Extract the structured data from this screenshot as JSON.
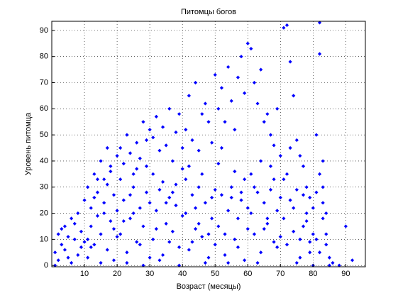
{
  "chart_data": {
    "type": "scatter",
    "title": "Питомцы богов",
    "x_label": "Возраст (месяцы)",
    "y_label": "Уровень питомца",
    "xlim": [
      0,
      96
    ],
    "ylim": [
      -0.5,
      93.5
    ],
    "xticks": [
      10,
      20,
      30,
      40,
      50,
      60,
      70,
      80,
      90
    ],
    "yticks": [
      0,
      10,
      20,
      30,
      40,
      50,
      60,
      70,
      80,
      90
    ],
    "grid": true,
    "series": [
      {
        "color": "#0000ff",
        "x": [
          1,
          2,
          3,
          4,
          5,
          6,
          7,
          8,
          9,
          10,
          1,
          2,
          3,
          4,
          5,
          6,
          7,
          8,
          9,
          10,
          11,
          12,
          13,
          14,
          15,
          16,
          17,
          18,
          19,
          20,
          11,
          12,
          13,
          14,
          15,
          16,
          17,
          18,
          19,
          20,
          11,
          13,
          15,
          17,
          19,
          12,
          14,
          16,
          18,
          20,
          21,
          22,
          23,
          24,
          25,
          26,
          27,
          28,
          29,
          30,
          21,
          22,
          23,
          24,
          25,
          26,
          27,
          28,
          29,
          30,
          21,
          23,
          25,
          27,
          29,
          22,
          24,
          26,
          28,
          30,
          31,
          32,
          33,
          34,
          35,
          36,
          37,
          38,
          39,
          40,
          31,
          32,
          33,
          34,
          35,
          36,
          37,
          38,
          39,
          40,
          31,
          33,
          35,
          37,
          39,
          32,
          34,
          36,
          38,
          40,
          41,
          42,
          43,
          44,
          45,
          46,
          47,
          48,
          49,
          50,
          41,
          42,
          43,
          44,
          45,
          46,
          47,
          48,
          49,
          50,
          41,
          43,
          45,
          47,
          49,
          42,
          44,
          46,
          48,
          50,
          51,
          52,
          53,
          54,
          55,
          56,
          57,
          58,
          59,
          60,
          51,
          52,
          53,
          54,
          55,
          56,
          57,
          58,
          59,
          60,
          51,
          53,
          55,
          57,
          59,
          52,
          54,
          56,
          58,
          60,
          61,
          62,
          63,
          64,
          65,
          66,
          67,
          68,
          69,
          70,
          61,
          62,
          63,
          64,
          65,
          66,
          67,
          68,
          69,
          70,
          61,
          63,
          65,
          67,
          69,
          62,
          64,
          66,
          68,
          70,
          71,
          72,
          73,
          74,
          75,
          76,
          77,
          78,
          79,
          80,
          71,
          72,
          73,
          74,
          75,
          76,
          77,
          78,
          79,
          80,
          71,
          73,
          75,
          77,
          79,
          72,
          74,
          76,
          78,
          80,
          81,
          82,
          82,
          83,
          83,
          84,
          85,
          86,
          90,
          92,
          81,
          82,
          83,
          84,
          81,
          82,
          83,
          84,
          85,
          88
        ],
        "values": [
          5,
          12,
          8,
          15,
          3,
          18,
          10,
          20,
          7,
          25,
          0,
          2,
          14,
          6,
          11,
          1,
          16,
          4,
          13,
          9,
          30,
          22,
          35,
          28,
          40,
          33,
          45,
          38,
          27,
          42,
          3,
          15,
          8,
          19,
          12,
          24,
          6,
          17,
          2,
          21,
          10,
          26,
          1,
          31,
          14,
          7,
          33,
          20,
          36,
          11,
          45,
          39,
          50,
          43,
          35,
          47,
          41,
          55,
          48,
          52,
          12,
          25,
          5,
          18,
          30,
          9,
          22,
          15,
          28,
          3,
          33,
          1,
          20,
          8,
          38,
          17,
          27,
          37,
          0,
          24,
          49,
          57,
          44,
          53,
          46,
          60,
          40,
          51,
          58,
          45,
          10,
          21,
          29,
          4,
          16,
          26,
          13,
          31,
          7,
          19,
          35,
          2,
          24,
          28,
          0,
          14,
          32,
          9,
          23,
          37,
          52,
          65,
          48,
          70,
          44,
          58,
          62,
          55,
          47,
          73,
          20,
          6,
          27,
          14,
          30,
          11,
          24,
          3,
          18,
          29,
          33,
          9,
          16,
          1,
          26,
          38,
          22,
          35,
          12,
          8,
          60,
          68,
          55,
          76,
          63,
          52,
          72,
          80,
          66,
          85,
          15,
          27,
          4,
          21,
          30,
          10,
          18,
          25,
          2,
          22,
          39,
          12,
          26,
          7,
          33,
          45,
          1,
          36,
          28,
          14,
          83,
          70,
          62,
          75,
          55,
          58,
          50,
          46,
          60,
          42,
          20,
          12,
          28,
          5,
          24,
          16,
          29,
          9,
          21,
          26,
          35,
          1,
          14,
          38,
          7,
          30,
          40,
          18,
          33,
          11,
          91,
          92,
          78,
          65,
          48,
          42,
          38,
          30,
          26,
          22,
          18,
          8,
          25,
          13,
          29,
          3,
          15,
          20,
          5,
          12,
          33,
          45,
          1,
          27,
          9,
          35,
          22,
          10,
          17,
          0,
          50,
          93,
          81,
          40,
          18,
          8,
          3,
          1,
          15,
          2,
          28,
          35,
          24,
          12,
          10,
          5,
          30,
          20,
          0,
          0
        ]
      }
    ]
  }
}
